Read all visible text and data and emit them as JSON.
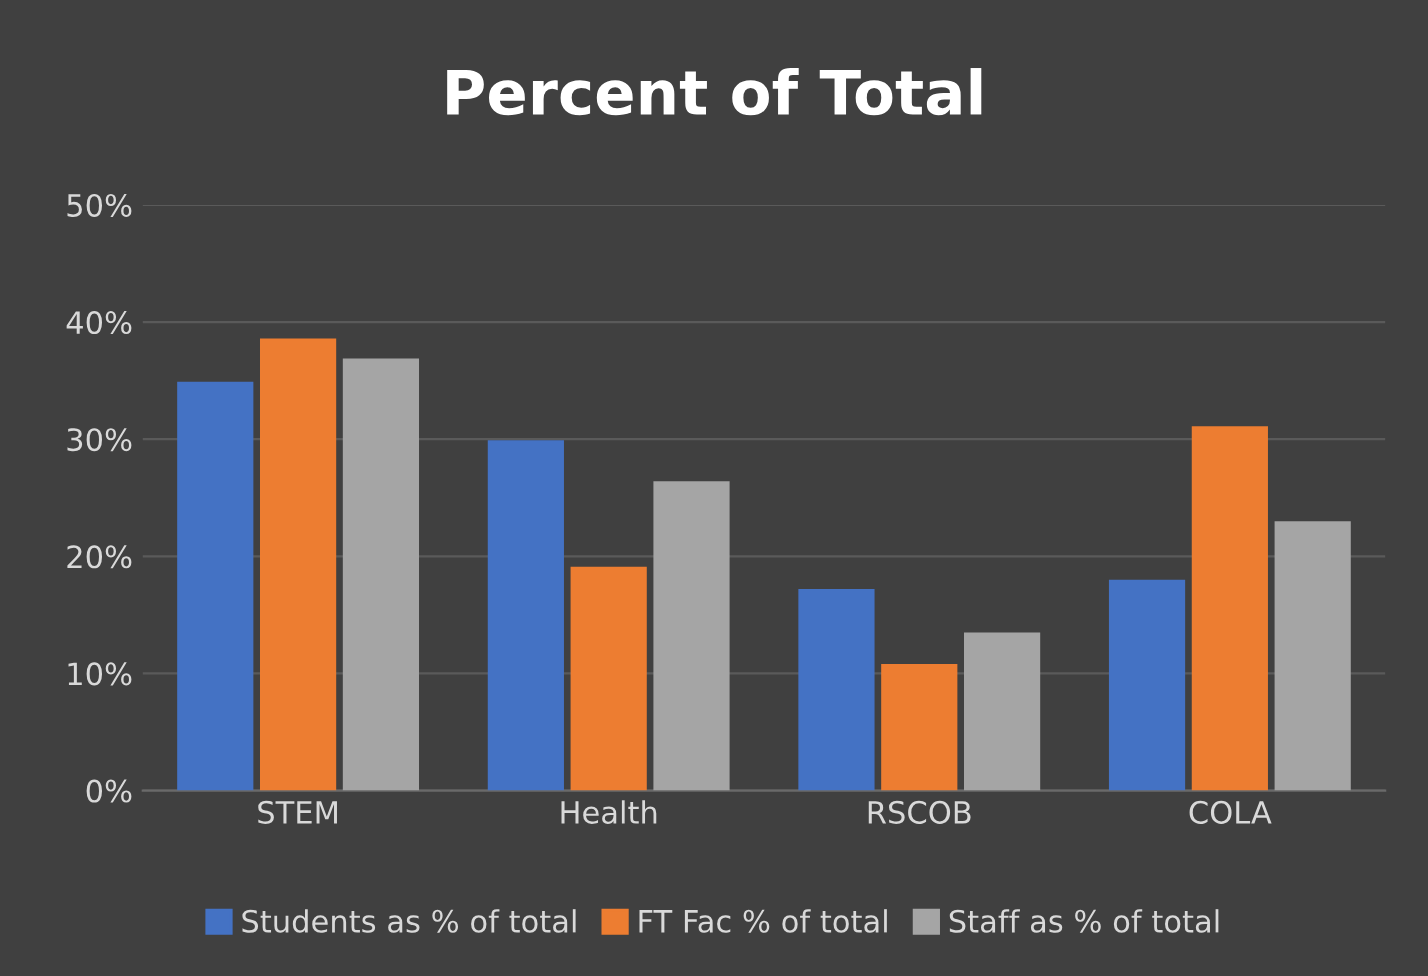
{
  "chart_data": {
    "type": "bar",
    "title": "Percent of Total",
    "categories": [
      "STEM",
      "Health",
      "RSCOB",
      "COLA"
    ],
    "series": [
      {
        "name": "Students as % of total",
        "color": "#4472c4",
        "values": [
          34.9,
          29.9,
          17.2,
          18.0
        ]
      },
      {
        "name": "FT Fac % of total",
        "color": "#ed7d31",
        "values": [
          38.6,
          19.1,
          10.8,
          31.1
        ]
      },
      {
        "name": "Staff as % of total",
        "color": "#a5a5a5",
        "values": [
          36.9,
          26.4,
          13.5,
          23.0
        ]
      }
    ],
    "ylim": [
      0,
      50
    ],
    "yticks": [
      {
        "value": 0,
        "label": "0%"
      },
      {
        "value": 10,
        "label": "10%"
      },
      {
        "value": 20,
        "label": "20%"
      },
      {
        "value": 30,
        "label": "30%"
      },
      {
        "value": 40,
        "label": "40%"
      },
      {
        "value": 50,
        "label": "50%"
      }
    ],
    "grid": "y",
    "legend": "bottom"
  }
}
